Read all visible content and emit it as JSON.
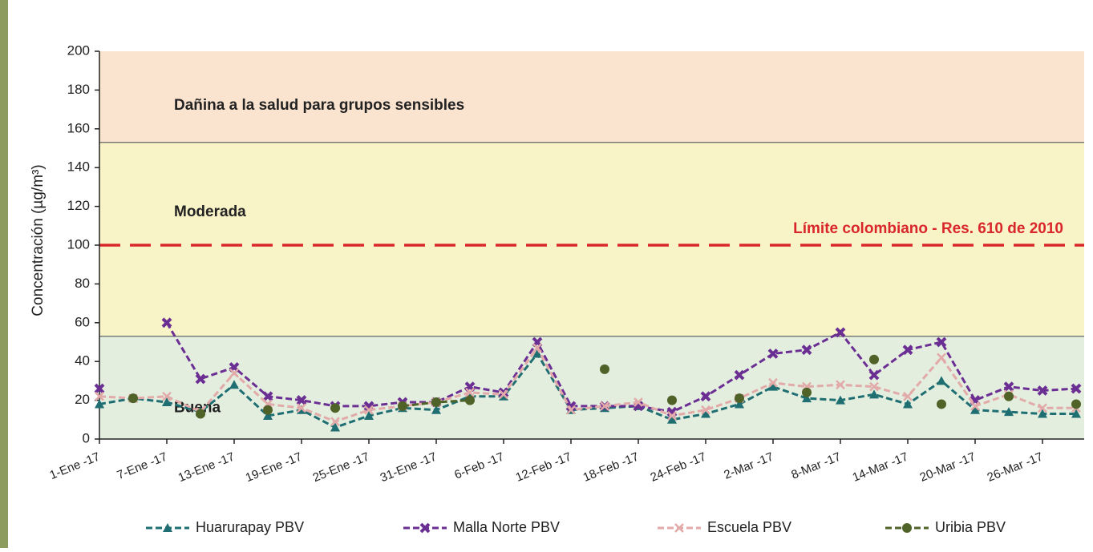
{
  "chart_data": {
    "type": "line",
    "y_label": "Concentración (µg/m³)",
    "ylim": [
      0,
      200
    ],
    "yticks": [
      0,
      20,
      40,
      60,
      80,
      100,
      120,
      140,
      160,
      180,
      200
    ],
    "categories": [
      "1-Ene -17",
      null,
      "7-Ene -17",
      null,
      "13-Ene -17",
      null,
      "19-Ene -17",
      null,
      "25-Ene -17",
      null,
      "31-Ene -17",
      null,
      "6-Feb -17",
      null,
      "12-Feb -17",
      null,
      "18-Feb -17",
      null,
      "24-Feb -17",
      null,
      "2-Mar -17",
      null,
      "8-Mar -17",
      null,
      "14-Mar -17",
      null,
      "20-Mar -17",
      null,
      "26-Mar -17",
      null
    ],
    "bands": [
      {
        "from": 0,
        "to": 53,
        "color": "#e3eedf",
        "label": "Buena",
        "label_y": 16
      },
      {
        "from": 53,
        "to": 153,
        "color": "#f9f4c8",
        "label": "Moderada",
        "label_y": 117
      },
      {
        "from": 153,
        "to": 200,
        "color": "#fae3cf",
        "label": "Dañina a la salud para grupos sensibles",
        "label_y": 172
      }
    ],
    "limit": {
      "value": 100,
      "label": "Límite colombiano - Res. 610 de 2010",
      "color": "#d9262b"
    },
    "series": [
      {
        "name": "Huarurapay PBV",
        "color": "#1f6e72",
        "marker": "triangle",
        "values": [
          18,
          21,
          19,
          14,
          28,
          12,
          15,
          6,
          12,
          16,
          15,
          22,
          22,
          44,
          15,
          16,
          17,
          10,
          13,
          18,
          27,
          21,
          20,
          23,
          18,
          30,
          15,
          14,
          13,
          13
        ]
      },
      {
        "name": "Malla Norte PBV",
        "color": "#6b2f93",
        "marker": "square",
        "values": [
          26,
          null,
          60,
          31,
          37,
          22,
          20,
          17,
          17,
          19,
          19,
          27,
          24,
          50,
          17,
          17,
          17,
          14,
          22,
          33,
          44,
          46,
          55,
          33,
          46,
          50,
          20,
          27,
          25,
          26
        ]
      },
      {
        "name": "Escuela PBV",
        "color": "#e2aaa8",
        "marker": "x",
        "values": [
          22,
          21,
          22,
          14,
          34,
          18,
          16,
          9,
          15,
          17,
          19,
          24,
          23,
          47,
          15,
          17,
          19,
          12,
          15,
          21,
          29,
          27,
          28,
          27,
          22,
          42,
          17,
          23,
          16,
          16
        ]
      },
      {
        "name": "Uribia PBV",
        "color": "#4f6228",
        "marker": "circle",
        "values": [
          null,
          21,
          null,
          13,
          null,
          15,
          null,
          16,
          null,
          17,
          19,
          20,
          null,
          null,
          null,
          36,
          null,
          20,
          null,
          21,
          null,
          24,
          null,
          41,
          null,
          18,
          null,
          22,
          null,
          18
        ]
      }
    ]
  }
}
